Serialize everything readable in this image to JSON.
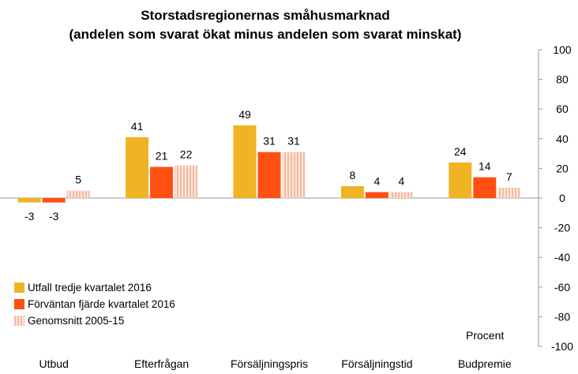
{
  "chart_data": {
    "type": "bar",
    "title": "Storstadsregionernas småhusmarknad",
    "subtitle": "(andelen som svarat ökat minus andelen som svarat minskat)",
    "unit_label": "Procent",
    "categories": [
      "Utbud",
      "Efterfrågan",
      "Försäljningspris",
      "Försäljningstid",
      "Budpremie"
    ],
    "series": [
      {
        "name": "Utfall tredje kvartalet 2016",
        "values": [
          -3,
          41,
          49,
          8,
          24
        ],
        "color": "#F0B323",
        "pattern": "solid"
      },
      {
        "name": "Förväntan fjärde kvartalet 2016",
        "values": [
          -3,
          21,
          31,
          4,
          14
        ],
        "color": "#FF4F12",
        "pattern": "solid"
      },
      {
        "name": "Genomsnitt 2005-15",
        "values": [
          5,
          22,
          31,
          4,
          7
        ],
        "color": "#F6C1A8",
        "pattern": "vertical-stripes"
      }
    ],
    "yaxis": {
      "position": "right",
      "ylim": [
        -100,
        100
      ],
      "ticks": [
        100,
        80,
        60,
        40,
        20,
        0,
        -20,
        -40,
        -60,
        -80,
        -100
      ]
    },
    "grid": false,
    "legend_position": "bottom-left"
  }
}
